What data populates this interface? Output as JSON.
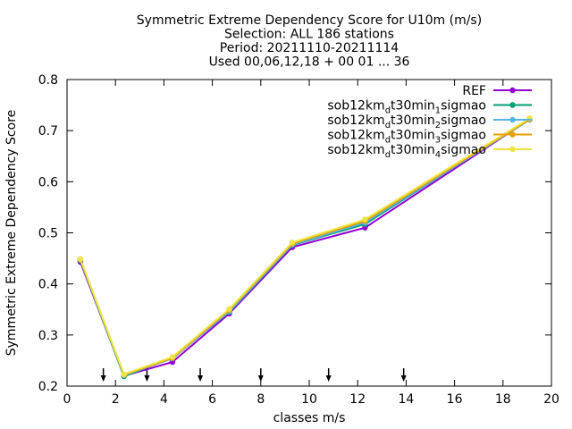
{
  "chart_data": {
    "type": "line",
    "title_lines": [
      "Symmetric Extreme Dependency Score  for U10m (m/s)",
      "Selection: ALL    186 stations",
      "Period: 20211110-20211114",
      "Used 00,06,12,18 + 00 01 ... 36"
    ],
    "xlabel": "classes m/s",
    "ylabel": "Symmetric Extreme Dependency Score",
    "xlim": [
      0,
      20
    ],
    "ylim": [
      0.2,
      0.8
    ],
    "xticks": [
      0,
      2,
      4,
      6,
      8,
      10,
      12,
      14,
      16,
      18,
      20
    ],
    "yticks": [
      0.2,
      0.3,
      0.4,
      0.5,
      0.6,
      0.7,
      0.8
    ],
    "legend_position": "top-right",
    "series": [
      {
        "name": "REF",
        "color": "#9400d3",
        "x": [
          0.55,
          2.35,
          4.35,
          6.7,
          9.3,
          12.3,
          19.1
        ],
        "y": [
          0.443,
          0.22,
          0.247,
          0.342,
          0.472,
          0.51,
          0.722
        ]
      },
      {
        "name_parts": [
          "sob12km",
          "d",
          "t30min",
          "1",
          "sigmao"
        ],
        "color": "#009e73",
        "x": [
          0.55,
          2.35,
          4.35,
          6.7,
          9.3,
          12.3,
          19.1
        ],
        "y": [
          0.446,
          0.219,
          0.256,
          0.345,
          0.476,
          0.517,
          0.723
        ]
      },
      {
        "name_parts": [
          "sob12km",
          "d",
          "t30min",
          "2",
          "sigmao"
        ],
        "color": "#56b4e9",
        "x": [
          0.55,
          2.35,
          4.35,
          6.7,
          9.3,
          12.3,
          19.1
        ],
        "y": [
          0.447,
          0.221,
          0.254,
          0.346,
          0.477,
          0.52,
          0.721
        ]
      },
      {
        "name_parts": [
          "sob12km",
          "d",
          "t30min",
          "3",
          "sigmao"
        ],
        "color": "#e69f00",
        "x": [
          0.55,
          2.35,
          4.35,
          6.7,
          9.3,
          12.3,
          19.1
        ],
        "y": [
          0.448,
          0.222,
          0.255,
          0.349,
          0.479,
          0.523,
          0.722
        ]
      },
      {
        "name_parts": [
          "sob12km",
          "d",
          "t30min",
          "4",
          "sigmao"
        ],
        "color": "#f0e442",
        "x": [
          0.55,
          2.35,
          4.35,
          6.7,
          9.3,
          12.3,
          19.1
        ],
        "y": [
          0.449,
          0.223,
          0.257,
          0.351,
          0.481,
          0.526,
          0.724
        ]
      }
    ],
    "class_boundary_markers_x": [
      1.5,
      3.3,
      5.5,
      8.0,
      10.8,
      13.9
    ]
  }
}
